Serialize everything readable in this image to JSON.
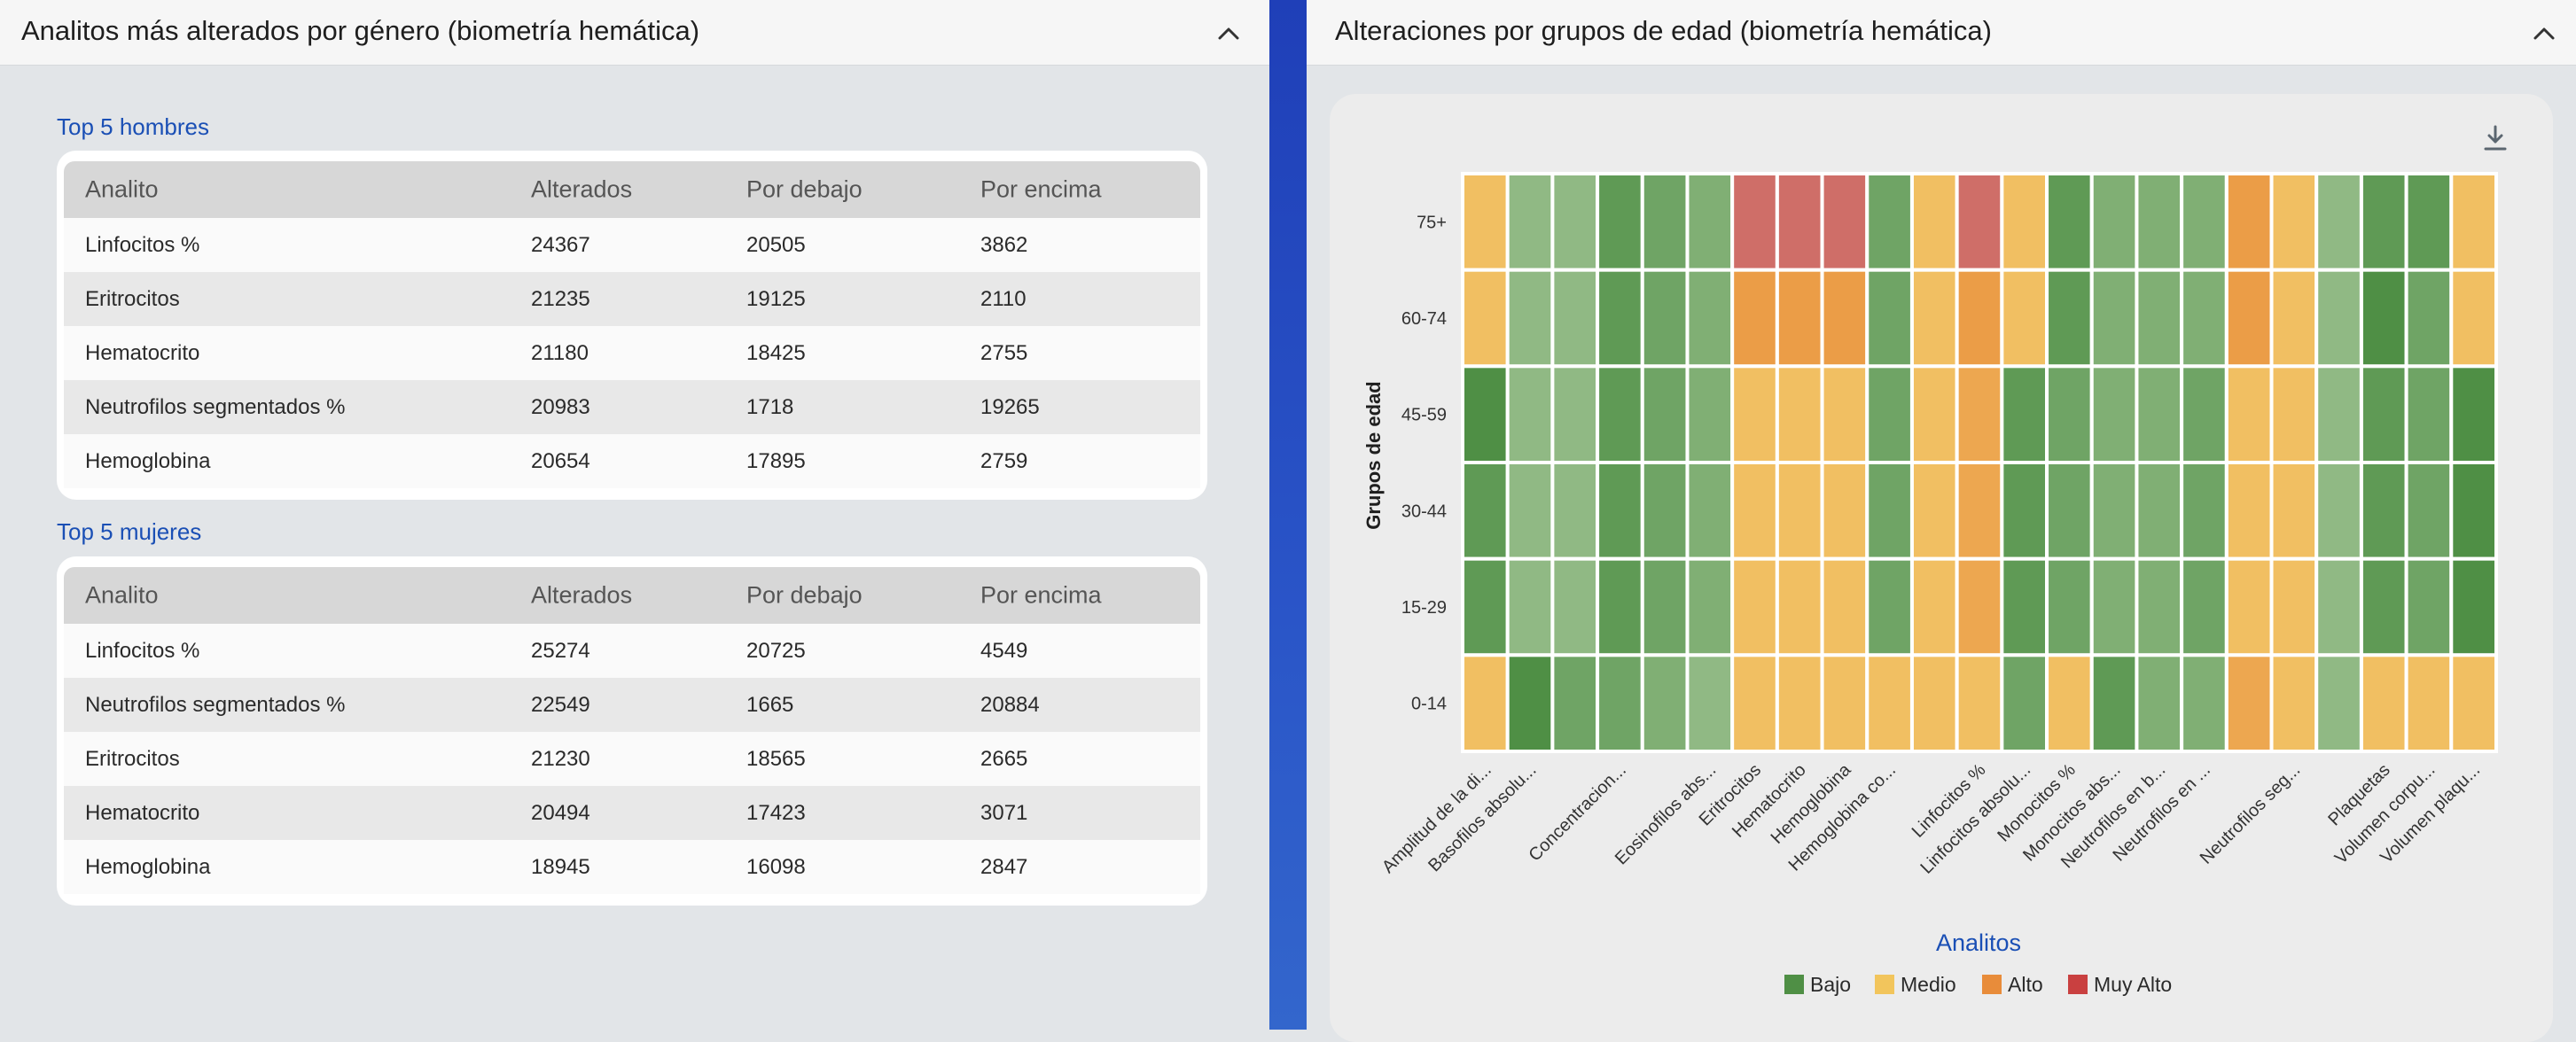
{
  "left_panel": {
    "title": "Analitos más alterados por género (biometría hemática)",
    "men": {
      "section_title": "Top 5 hombres",
      "columns": [
        "Analito",
        "Alterados",
        "Por debajo",
        "Por encima"
      ],
      "rows": [
        [
          "Linfocitos %",
          "24367",
          "20505",
          "3862"
        ],
        [
          "Eritrocitos",
          "21235",
          "19125",
          "2110"
        ],
        [
          "Hematocrito",
          "21180",
          "18425",
          "2755"
        ],
        [
          "Neutrofilos segmentados %",
          "20983",
          "1718",
          "19265"
        ],
        [
          "Hemoglobina",
          "20654",
          "17895",
          "2759"
        ]
      ]
    },
    "women": {
      "section_title": "Top 5 mujeres",
      "columns": [
        "Analito",
        "Alterados",
        "Por debajo",
        "Por encima"
      ],
      "rows": [
        [
          "Linfocitos %",
          "25274",
          "20725",
          "4549"
        ],
        [
          "Neutrofilos segmentados %",
          "22549",
          "1665",
          "20884"
        ],
        [
          "Eritrocitos",
          "21230",
          "18565",
          "2665"
        ],
        [
          "Hematocrito",
          "20494",
          "17423",
          "3071"
        ],
        [
          "Hemoglobina",
          "18945",
          "16098",
          "2847"
        ]
      ]
    }
  },
  "right_panel": {
    "title": "Alteraciones por grupos de edad (biometría hemática)"
  },
  "icons": {
    "collapse": "chevron-up-icon",
    "download": "download-icon"
  },
  "chart_data": {
    "type": "heatmap",
    "title": "",
    "xlabel": "Analitos",
    "ylabel": "Grupos de edad",
    "y_categories": [
      "75+",
      "60-74",
      "45-59",
      "30-44",
      "15-29",
      "0-14"
    ],
    "x_categories": [
      "Amplitud de la di...",
      "Basofilos absolu...",
      "",
      "Concentracion...",
      "",
      "Eosinofilos abs...",
      "Eritrocitos",
      "Hematocrito",
      "Hemoglobina",
      "Hemoglobina co...",
      "",
      "Linfocitos %",
      "Linfocitos absolu...",
      "Monocitos %",
      "Monocitos abs...",
      "Neutrofilos en b...",
      "Neutrofilos en ...",
      "",
      "Neutrofilos seg...",
      "",
      "Plaquetas",
      "Volumen corpu...",
      "Volumen plaqu..."
    ],
    "values": [
      [
        0.55,
        0.2,
        0.2,
        0.05,
        0.1,
        0.15,
        0.85,
        0.85,
        0.85,
        0.1,
        0.55,
        0.85,
        0.55,
        0.05,
        0.15,
        0.15,
        0.15,
        0.65,
        0.55,
        0.2,
        0.05,
        0.05,
        0.55
      ],
      [
        0.55,
        0.2,
        0.2,
        0.05,
        0.1,
        0.15,
        0.65,
        0.65,
        0.65,
        0.1,
        0.55,
        0.65,
        0.55,
        0.05,
        0.15,
        0.15,
        0.15,
        0.65,
        0.55,
        0.2,
        0.0,
        0.1,
        0.55
      ],
      [
        0.0,
        0.2,
        0.2,
        0.05,
        0.1,
        0.15,
        0.55,
        0.55,
        0.55,
        0.1,
        0.55,
        0.62,
        0.05,
        0.1,
        0.15,
        0.15,
        0.1,
        0.55,
        0.55,
        0.2,
        0.05,
        0.1,
        0.0
      ],
      [
        0.05,
        0.2,
        0.2,
        0.05,
        0.1,
        0.15,
        0.55,
        0.55,
        0.55,
        0.1,
        0.55,
        0.62,
        0.05,
        0.1,
        0.15,
        0.15,
        0.1,
        0.55,
        0.55,
        0.2,
        0.05,
        0.1,
        0.0
      ],
      [
        0.05,
        0.2,
        0.2,
        0.05,
        0.1,
        0.15,
        0.55,
        0.55,
        0.55,
        0.1,
        0.55,
        0.62,
        0.05,
        0.1,
        0.15,
        0.15,
        0.1,
        0.55,
        0.55,
        0.2,
        0.05,
        0.1,
        0.0
      ],
      [
        0.55,
        0.0,
        0.1,
        0.1,
        0.15,
        0.2,
        0.55,
        0.55,
        0.55,
        0.55,
        0.55,
        0.55,
        0.1,
        0.55,
        0.05,
        0.15,
        0.15,
        0.62,
        0.55,
        0.2,
        0.55,
        0.55,
        0.55
      ]
    ],
    "legend": {
      "position": "bottom",
      "items": [
        {
          "label": "Bajo",
          "color": "#4f8f45"
        },
        {
          "label": "Medio",
          "color": "#f2c55c"
        },
        {
          "label": "Alto",
          "color": "#e88c3a"
        },
        {
          "label": "Muy Alto",
          "color": "#c94040"
        }
      ]
    },
    "grid": false
  }
}
